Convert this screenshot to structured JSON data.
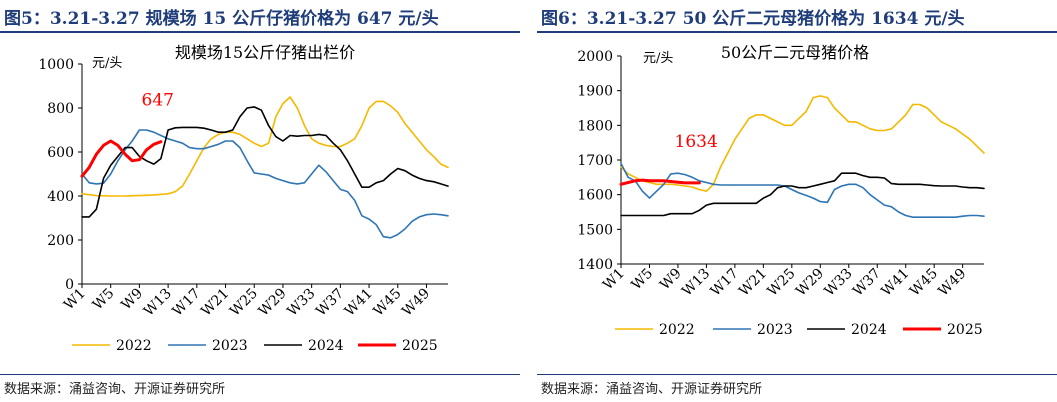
{
  "panels": [
    {
      "title": "图5：3.21-3.27 规模场 15 公斤仔猪价格为 647 元/头",
      "source": "数据来源：涌益咨询、开源证券研究所"
    },
    {
      "title": "图6：3.21-3.27 50 公斤二元母猪价格为 1634 元/头",
      "source": "数据来源：涌益咨询、开源证券研究所"
    }
  ],
  "chart_data": [
    {
      "type": "line",
      "title": "规模场15公斤仔猪出栏价",
      "ylabel": "元/头",
      "ylim": [
        0,
        1000
      ],
      "yticks": [
        0,
        200,
        400,
        600,
        800,
        1000
      ],
      "xlim": [
        1,
        52
      ],
      "xticks": [
        "W1",
        "W5",
        "W9",
        "W13",
        "W17",
        "W21",
        "W25",
        "W29",
        "W33",
        "W37",
        "W41",
        "W45",
        "W49"
      ],
      "xtick_weeks": [
        1,
        5,
        9,
        13,
        17,
        21,
        25,
        29,
        33,
        37,
        41,
        45,
        49
      ],
      "grid": false,
      "legend_position": "bottom",
      "annotation": {
        "text": "647",
        "week": 11,
        "value": 647,
        "color": "#ff0000"
      },
      "series": [
        {
          "name": "2022",
          "color": "#f5b800",
          "x": [
            1,
            3,
            5,
            7,
            9,
            11,
            13,
            14,
            15,
            16,
            17,
            18,
            19,
            20,
            21,
            22,
            23,
            24,
            25,
            26,
            27,
            28,
            29,
            30,
            31,
            32,
            33,
            34,
            35,
            36,
            37,
            38,
            39,
            40,
            41,
            42,
            43,
            44,
            45,
            46,
            47,
            48,
            49,
            50,
            51,
            52
          ],
          "y": [
            410,
            402,
            400,
            400,
            402,
            405,
            410,
            420,
            445,
            500,
            560,
            620,
            660,
            680,
            690,
            690,
            680,
            660,
            640,
            625,
            640,
            760,
            820,
            850,
            800,
            720,
            660,
            640,
            630,
            625,
            625,
            640,
            660,
            720,
            800,
            830,
            830,
            810,
            780,
            730,
            690,
            650,
            610,
            580,
            545,
            530
          ]
        },
        {
          "name": "2023",
          "color": "#2e75b6",
          "x": [
            1,
            2,
            3,
            4,
            5,
            6,
            7,
            8,
            9,
            10,
            11,
            12,
            13,
            14,
            15,
            16,
            17,
            18,
            19,
            20,
            21,
            22,
            23,
            24,
            25,
            26,
            27,
            28,
            29,
            30,
            31,
            32,
            33,
            34,
            35,
            36,
            37,
            38,
            39,
            40,
            41,
            42,
            43,
            44,
            45,
            46,
            47,
            48,
            49,
            50,
            51,
            52
          ],
          "y": [
            500,
            460,
            455,
            458,
            500,
            560,
            610,
            650,
            700,
            700,
            690,
            675,
            660,
            650,
            640,
            620,
            615,
            615,
            625,
            635,
            650,
            650,
            620,
            560,
            505,
            500,
            495,
            480,
            470,
            460,
            455,
            460,
            500,
            540,
            510,
            470,
            430,
            420,
            380,
            310,
            295,
            270,
            215,
            210,
            225,
            250,
            285,
            305,
            315,
            318,
            315,
            310
          ]
        },
        {
          "name": "2024",
          "color": "#000000",
          "x": [
            1,
            2,
            3,
            4,
            5,
            6,
            7,
            8,
            9,
            10,
            11,
            12,
            13,
            14,
            15,
            16,
            17,
            18,
            19,
            20,
            21,
            22,
            23,
            24,
            25,
            26,
            27,
            28,
            29,
            30,
            31,
            32,
            33,
            34,
            35,
            36,
            37,
            38,
            39,
            40,
            41,
            42,
            43,
            44,
            45,
            46,
            47,
            48,
            49,
            50,
            51,
            52
          ],
          "y": [
            305,
            305,
            340,
            480,
            540,
            580,
            620,
            620,
            580,
            560,
            545,
            570,
            700,
            710,
            712,
            712,
            712,
            708,
            700,
            690,
            690,
            700,
            760,
            800,
            805,
            790,
            720,
            670,
            650,
            675,
            672,
            675,
            675,
            680,
            675,
            640,
            610,
            560,
            500,
            440,
            440,
            460,
            470,
            500,
            525,
            515,
            495,
            480,
            470,
            465,
            455,
            445
          ]
        },
        {
          "name": "2025",
          "color": "#ff0000",
          "x": [
            1,
            2,
            3,
            4,
            5,
            6,
            7,
            8,
            9,
            10,
            11,
            12
          ],
          "y": [
            490,
            530,
            590,
            630,
            650,
            630,
            590,
            560,
            565,
            610,
            635,
            647
          ]
        }
      ]
    },
    {
      "type": "line",
      "title": "50公斤二元母猪价格",
      "ylabel": "元/头",
      "ylim": [
        1400,
        2000
      ],
      "yticks": [
        1400,
        1500,
        1600,
        1700,
        1800,
        1900,
        2000
      ],
      "xlim": [
        1,
        52
      ],
      "xticks": [
        "W1",
        "W5",
        "W9",
        "W13",
        "W17",
        "W21",
        "W25",
        "W29",
        "W33",
        "W37",
        "W41",
        "W45",
        "W49"
      ],
      "xtick_weeks": [
        1,
        5,
        9,
        13,
        17,
        21,
        25,
        29,
        33,
        37,
        41,
        45,
        49
      ],
      "grid": false,
      "legend_position": "bottom",
      "annotation": {
        "text": "1634",
        "week": 11,
        "value": 1634,
        "color": "#ff0000"
      },
      "series": [
        {
          "name": "2022",
          "color": "#f5b800",
          "x": [
            1,
            2,
            3,
            4,
            5,
            6,
            7,
            8,
            9,
            10,
            11,
            12,
            13,
            14,
            15,
            16,
            17,
            18,
            19,
            20,
            21,
            22,
            23,
            24,
            25,
            26,
            27,
            28,
            29,
            30,
            31,
            32,
            33,
            34,
            35,
            36,
            37,
            38,
            39,
            40,
            41,
            42,
            43,
            44,
            45,
            46,
            47,
            48,
            49,
            50,
            51,
            52
          ],
          "y": [
            1680,
            1660,
            1650,
            1640,
            1635,
            1630,
            1630,
            1630,
            1628,
            1625,
            1622,
            1615,
            1610,
            1630,
            1680,
            1720,
            1760,
            1790,
            1820,
            1830,
            1830,
            1820,
            1810,
            1800,
            1800,
            1820,
            1840,
            1880,
            1885,
            1880,
            1850,
            1830,
            1810,
            1810,
            1800,
            1790,
            1785,
            1785,
            1790,
            1810,
            1830,
            1860,
            1860,
            1850,
            1830,
            1810,
            1800,
            1790,
            1775,
            1760,
            1740,
            1720
          ]
        },
        {
          "name": "2023",
          "color": "#2e75b6",
          "x": [
            1,
            2,
            3,
            4,
            5,
            6,
            7,
            8,
            9,
            10,
            11,
            12,
            13,
            14,
            15,
            16,
            17,
            18,
            19,
            20,
            21,
            22,
            23,
            24,
            25,
            26,
            27,
            28,
            29,
            30,
            31,
            32,
            33,
            34,
            35,
            36,
            37,
            38,
            39,
            40,
            41,
            42,
            43,
            44,
            45,
            46,
            47,
            48,
            49,
            50,
            51,
            52
          ],
          "y": [
            1690,
            1650,
            1640,
            1610,
            1590,
            1610,
            1630,
            1660,
            1662,
            1658,
            1650,
            1640,
            1635,
            1630,
            1628,
            1628,
            1628,
            1628,
            1628,
            1628,
            1628,
            1628,
            1628,
            1625,
            1615,
            1605,
            1598,
            1590,
            1580,
            1578,
            1615,
            1625,
            1630,
            1630,
            1620,
            1600,
            1585,
            1570,
            1565,
            1550,
            1540,
            1535,
            1535,
            1535,
            1535,
            1535,
            1535,
            1535,
            1538,
            1540,
            1540,
            1538
          ]
        },
        {
          "name": "2024",
          "color": "#000000",
          "x": [
            1,
            2,
            3,
            4,
            5,
            6,
            7,
            8,
            9,
            10,
            11,
            12,
            13,
            14,
            15,
            16,
            17,
            18,
            19,
            20,
            21,
            22,
            23,
            24,
            25,
            26,
            27,
            28,
            29,
            30,
            31,
            32,
            33,
            34,
            35,
            36,
            37,
            38,
            39,
            40,
            41,
            42,
            43,
            44,
            45,
            46,
            47,
            48,
            49,
            50,
            51,
            52
          ],
          "y": [
            1540,
            1540,
            1540,
            1540,
            1540,
            1540,
            1540,
            1545,
            1545,
            1545,
            1545,
            1555,
            1570,
            1575,
            1575,
            1575,
            1575,
            1575,
            1575,
            1575,
            1590,
            1600,
            1620,
            1625,
            1625,
            1620,
            1620,
            1625,
            1630,
            1635,
            1640,
            1662,
            1662,
            1662,
            1655,
            1650,
            1650,
            1648,
            1632,
            1630,
            1630,
            1630,
            1630,
            1628,
            1626,
            1625,
            1625,
            1625,
            1622,
            1620,
            1620,
            1618
          ]
        },
        {
          "name": "2025",
          "color": "#ff0000",
          "x": [
            1,
            2,
            3,
            4,
            5,
            6,
            7,
            8,
            9,
            10,
            11,
            12
          ],
          "y": [
            1630,
            1635,
            1640,
            1642,
            1640,
            1640,
            1640,
            1638,
            1636,
            1634,
            1634,
            1634
          ]
        }
      ]
    }
  ]
}
